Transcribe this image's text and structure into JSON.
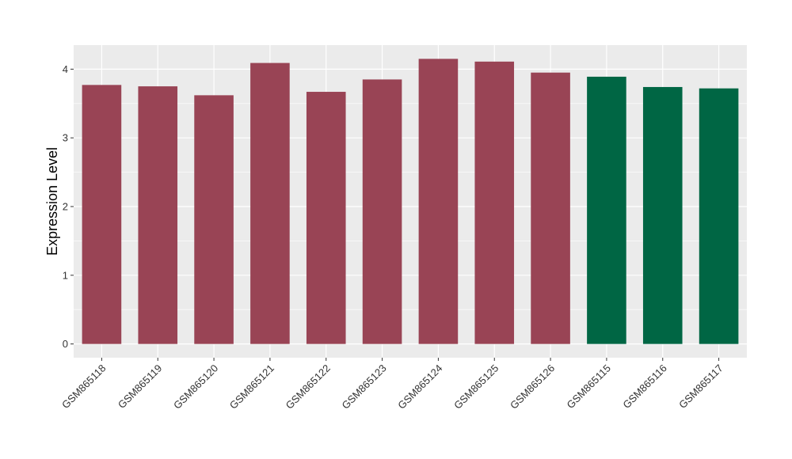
{
  "chart_data": {
    "type": "bar",
    "title": "",
    "xlabel": "",
    "ylabel": "Expression Level",
    "ylim": [
      -0.2,
      4.35
    ],
    "yticks": [
      0,
      1,
      2,
      3,
      4
    ],
    "grid": true,
    "categories": [
      "GSM865118",
      "GSM865119",
      "GSM865120",
      "GSM865121",
      "GSM865122",
      "GSM865123",
      "GSM865124",
      "GSM865125",
      "GSM865126",
      "GSM865115",
      "GSM865116",
      "GSM865117"
    ],
    "values": [
      3.77,
      3.75,
      3.62,
      4.09,
      3.67,
      3.85,
      4.15,
      4.11,
      3.95,
      3.89,
      3.74,
      3.72
    ],
    "groups": [
      "a",
      "a",
      "a",
      "a",
      "a",
      "a",
      "a",
      "a",
      "a",
      "b",
      "b",
      "b"
    ],
    "colors": {
      "a": "#994455",
      "b": "#006644"
    },
    "panel_background": "#EBEBEB",
    "gridline_color": "#FFFFFF"
  }
}
